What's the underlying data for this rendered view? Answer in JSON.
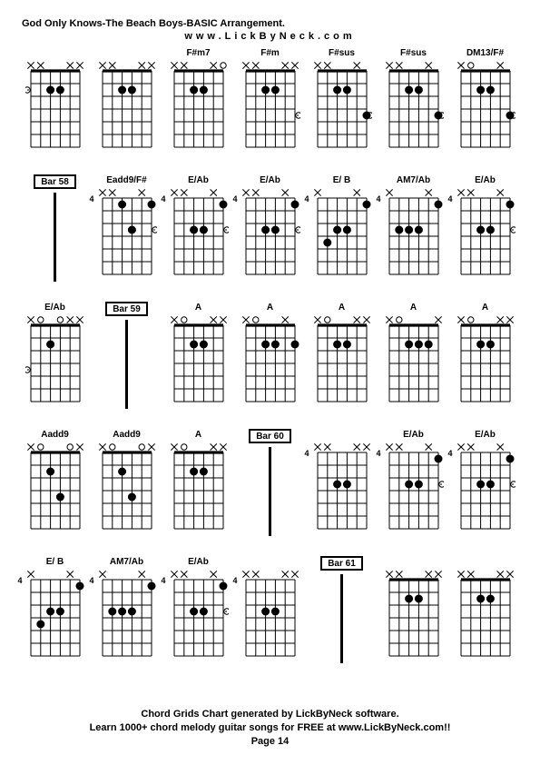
{
  "header": {
    "title": "God Only Knows-The Beach Boys-BASIC Arrangement.",
    "url": "www.LickByNeck.com"
  },
  "footer": {
    "line1": "Chord Grids Chart generated by LickByNeck software.",
    "line2": "Learn 1000+ chord melody guitar songs for FREE at www.LickByNeck.com!!",
    "page": "Page 14"
  },
  "style": {
    "bg": "#ffffff",
    "fg": "#000000",
    "grid_cols": 7,
    "grid_rows": 5,
    "diagram": {
      "strings": 6,
      "frets": 6,
      "width": 54,
      "height": 96,
      "x_size": 8,
      "dot_r": 4,
      "open_r": 3.2,
      "line_w": 1,
      "nut_w": 2
    }
  },
  "cells": [
    {
      "type": "chord",
      "label": "",
      "fretNum": null,
      "mutes": [
        0,
        1,
        4,
        5
      ],
      "opens": [],
      "nut": true,
      "dots": [
        {
          "s": 2,
          "f": 2
        },
        {
          "s": 3,
          "f": 2
        }
      ],
      "extraOpens": [
        {
          "side": "left",
          "f": 2
        }
      ]
    },
    {
      "type": "chord",
      "label": "",
      "fretNum": null,
      "mutes": [
        0,
        1,
        4,
        5
      ],
      "opens": [],
      "nut": true,
      "dots": [
        {
          "s": 2,
          "f": 2
        },
        {
          "s": 3,
          "f": 2
        }
      ]
    },
    {
      "type": "chord",
      "label": "F#m7",
      "fretNum": null,
      "mutes": [
        0,
        1,
        4
      ],
      "opens": [
        5
      ],
      "nut": true,
      "dots": [
        {
          "s": 2,
          "f": 2
        },
        {
          "s": 3,
          "f": 2
        }
      ]
    },
    {
      "type": "chord",
      "label": "F#m",
      "fretNum": null,
      "mutes": [
        0,
        1,
        4,
        5
      ],
      "opens": [],
      "nut": true,
      "dots": [
        {
          "s": 2,
          "f": 2
        },
        {
          "s": 3,
          "f": 2
        }
      ],
      "extraOpens": [
        {
          "side": "right",
          "f": 4
        }
      ]
    },
    {
      "type": "chord",
      "label": "F#sus",
      "fretNum": null,
      "mutes": [
        0,
        1,
        4
      ],
      "opens": [],
      "nut": true,
      "dots": [
        {
          "s": 2,
          "f": 2
        },
        {
          "s": 3,
          "f": 2
        },
        {
          "s": 5,
          "f": 4
        }
      ],
      "extraOpens": [
        {
          "side": "right",
          "f": 4
        }
      ]
    },
    {
      "type": "chord",
      "label": "F#sus",
      "fretNum": null,
      "mutes": [
        0,
        1,
        4
      ],
      "opens": [],
      "nut": true,
      "dots": [
        {
          "s": 2,
          "f": 2
        },
        {
          "s": 3,
          "f": 2
        },
        {
          "s": 5,
          "f": 4
        }
      ],
      "extraOpens": [
        {
          "side": "right",
          "f": 4
        }
      ]
    },
    {
      "type": "chord",
      "label": "DM13/F#",
      "fretNum": null,
      "mutes": [
        0,
        4
      ],
      "opens": [
        1
      ],
      "nut": true,
      "dots": [
        {
          "s": 2,
          "f": 2
        },
        {
          "s": 3,
          "f": 2
        },
        {
          "s": 5,
          "f": 4
        }
      ],
      "extraOpens": [
        {
          "side": "right",
          "f": 4
        }
      ]
    },
    {
      "type": "bar",
      "label": "Bar 58"
    },
    {
      "type": "chord",
      "label": "Eadd9/F#",
      "fretNum": "4",
      "mutes": [
        0,
        1,
        4
      ],
      "opens": [],
      "nut": false,
      "dots": [
        {
          "s": 2,
          "f": 1
        },
        {
          "s": 3,
          "f": 3
        },
        {
          "s": 5,
          "f": 1
        }
      ],
      "extraOpens": [
        {
          "side": "right",
          "f": 3
        }
      ]
    },
    {
      "type": "chord",
      "label": "E/Ab",
      "fretNum": "4",
      "mutes": [
        0,
        1,
        4
      ],
      "opens": [],
      "nut": false,
      "dots": [
        {
          "s": 2,
          "f": 3
        },
        {
          "s": 3,
          "f": 3
        },
        {
          "s": 5,
          "f": 1
        }
      ],
      "extraOpens": [
        {
          "side": "right",
          "f": 3
        }
      ]
    },
    {
      "type": "chord",
      "label": "E/Ab",
      "fretNum": "4",
      "mutes": [
        0,
        1,
        4
      ],
      "opens": [],
      "nut": false,
      "dots": [
        {
          "s": 2,
          "f": 3
        },
        {
          "s": 3,
          "f": 3
        },
        {
          "s": 5,
          "f": 1
        }
      ],
      "extraOpens": [
        {
          "side": "right",
          "f": 3
        }
      ]
    },
    {
      "type": "chord",
      "label": "E/ B",
      "fretNum": "4",
      "mutes": [
        0,
        4
      ],
      "opens": [],
      "nut": false,
      "dots": [
        {
          "s": 1,
          "f": 4
        },
        {
          "s": 2,
          "f": 3
        },
        {
          "s": 3,
          "f": 3
        },
        {
          "s": 5,
          "f": 1
        }
      ]
    },
    {
      "type": "chord",
      "label": "AM7/Ab",
      "fretNum": "4",
      "mutes": [
        0,
        4
      ],
      "opens": [],
      "nut": false,
      "dots": [
        {
          "s": 1,
          "f": 3
        },
        {
          "s": 2,
          "f": 3
        },
        {
          "s": 3,
          "f": 3
        },
        {
          "s": 5,
          "f": 1
        }
      ]
    },
    {
      "type": "chord",
      "label": "E/Ab",
      "fretNum": "4",
      "mutes": [
        0,
        1,
        4
      ],
      "opens": [],
      "nut": false,
      "dots": [
        {
          "s": 2,
          "f": 3
        },
        {
          "s": 3,
          "f": 3
        },
        {
          "s": 5,
          "f": 1
        }
      ],
      "extraOpens": [
        {
          "side": "right",
          "f": 3
        }
      ]
    },
    {
      "type": "chord",
      "label": "E/Ab",
      "fretNum": null,
      "mutes": [
        0,
        4,
        5
      ],
      "opens": [
        1,
        3
      ],
      "nut": true,
      "dots": [
        {
          "s": 2,
          "f": 2
        }
      ],
      "extraOpens": [
        {
          "side": "left",
          "f": 4
        }
      ]
    },
    {
      "type": "bar",
      "label": "Bar 59"
    },
    {
      "type": "chord",
      "label": "A",
      "fretNum": null,
      "mutes": [
        0,
        4,
        5
      ],
      "opens": [
        1
      ],
      "nut": true,
      "dots": [
        {
          "s": 2,
          "f": 2
        },
        {
          "s": 3,
          "f": 2
        }
      ]
    },
    {
      "type": "chord",
      "label": "A",
      "fretNum": null,
      "mutes": [
        0,
        4
      ],
      "opens": [
        1
      ],
      "nut": true,
      "dots": [
        {
          "s": 2,
          "f": 2
        },
        {
          "s": 3,
          "f": 2
        },
        {
          "s": 5,
          "f": 2
        }
      ]
    },
    {
      "type": "chord",
      "label": "A",
      "fretNum": null,
      "mutes": [
        0,
        4,
        5
      ],
      "opens": [
        1
      ],
      "nut": true,
      "dots": [
        {
          "s": 2,
          "f": 2
        },
        {
          "s": 3,
          "f": 2
        }
      ]
    },
    {
      "type": "chord",
      "label": "A",
      "fretNum": null,
      "mutes": [
        0,
        5
      ],
      "opens": [
        1
      ],
      "nut": true,
      "dots": [
        {
          "s": 2,
          "f": 2
        },
        {
          "s": 3,
          "f": 2
        },
        {
          "s": 4,
          "f": 2
        }
      ]
    },
    {
      "type": "chord",
      "label": "A",
      "fretNum": null,
      "mutes": [
        0,
        4,
        5
      ],
      "opens": [
        1
      ],
      "nut": true,
      "dots": [
        {
          "s": 2,
          "f": 2
        },
        {
          "s": 3,
          "f": 2
        }
      ]
    },
    {
      "type": "chord",
      "label": "Aadd9",
      "fretNum": null,
      "mutes": [
        0,
        5
      ],
      "opens": [
        1,
        4
      ],
      "nut": true,
      "dots": [
        {
          "s": 2,
          "f": 2
        },
        {
          "s": 3,
          "f": 4
        }
      ]
    },
    {
      "type": "chord",
      "label": "Aadd9",
      "fretNum": null,
      "mutes": [
        0,
        5
      ],
      "opens": [
        1,
        4
      ],
      "nut": true,
      "dots": [
        {
          "s": 2,
          "f": 2
        },
        {
          "s": 3,
          "f": 4
        }
      ]
    },
    {
      "type": "chord",
      "label": "A",
      "fretNum": null,
      "mutes": [
        0,
        4,
        5
      ],
      "opens": [
        1
      ],
      "nut": true,
      "dots": [
        {
          "s": 2,
          "f": 2
        },
        {
          "s": 3,
          "f": 2
        }
      ]
    },
    {
      "type": "bar",
      "label": "Bar 60"
    },
    {
      "type": "chord",
      "label": "",
      "fretNum": "4",
      "mutes": [
        0,
        1,
        4,
        5
      ],
      "opens": [],
      "nut": false,
      "dots": [
        {
          "s": 2,
          "f": 3
        },
        {
          "s": 3,
          "f": 3
        }
      ]
    },
    {
      "type": "chord",
      "label": "E/Ab",
      "fretNum": "4",
      "mutes": [
        0,
        1,
        4
      ],
      "opens": [],
      "nut": false,
      "dots": [
        {
          "s": 2,
          "f": 3
        },
        {
          "s": 3,
          "f": 3
        },
        {
          "s": 5,
          "f": 1
        }
      ],
      "extraOpens": [
        {
          "side": "right",
          "f": 3
        }
      ]
    },
    {
      "type": "chord",
      "label": "E/Ab",
      "fretNum": "4",
      "mutes": [
        0,
        1,
        4
      ],
      "opens": [],
      "nut": false,
      "dots": [
        {
          "s": 2,
          "f": 3
        },
        {
          "s": 3,
          "f": 3
        },
        {
          "s": 5,
          "f": 1
        }
      ],
      "extraOpens": [
        {
          "side": "right",
          "f": 3
        }
      ]
    },
    {
      "type": "chord",
      "label": "E/ B",
      "fretNum": "4",
      "mutes": [
        0,
        4
      ],
      "opens": [],
      "nut": false,
      "dots": [
        {
          "s": 1,
          "f": 4
        },
        {
          "s": 2,
          "f": 3
        },
        {
          "s": 3,
          "f": 3
        },
        {
          "s": 5,
          "f": 1
        }
      ]
    },
    {
      "type": "chord",
      "label": "AM7/Ab",
      "fretNum": "4",
      "mutes": [
        0,
        4
      ],
      "opens": [],
      "nut": false,
      "dots": [
        {
          "s": 1,
          "f": 3
        },
        {
          "s": 2,
          "f": 3
        },
        {
          "s": 3,
          "f": 3
        },
        {
          "s": 5,
          "f": 1
        }
      ]
    },
    {
      "type": "chord",
      "label": "E/Ab",
      "fretNum": "4",
      "mutes": [
        0,
        1,
        4
      ],
      "opens": [],
      "nut": false,
      "dots": [
        {
          "s": 2,
          "f": 3
        },
        {
          "s": 3,
          "f": 3
        },
        {
          "s": 5,
          "f": 1
        }
      ],
      "extraOpens": [
        {
          "side": "right",
          "f": 3
        }
      ]
    },
    {
      "type": "chord",
      "label": "",
      "fretNum": "4",
      "mutes": [
        0,
        1,
        4,
        5
      ],
      "opens": [],
      "nut": false,
      "dots": [
        {
          "s": 2,
          "f": 3
        },
        {
          "s": 3,
          "f": 3
        }
      ]
    },
    {
      "type": "bar",
      "label": "Bar 61"
    },
    {
      "type": "chord",
      "label": "",
      "fretNum": null,
      "mutes": [
        0,
        1,
        4,
        5
      ],
      "opens": [],
      "nut": true,
      "dots": [
        {
          "s": 2,
          "f": 2
        },
        {
          "s": 3,
          "f": 2
        }
      ]
    },
    {
      "type": "chord",
      "label": "",
      "fretNum": null,
      "mutes": [
        0,
        1,
        4,
        5
      ],
      "opens": [],
      "nut": true,
      "dots": [
        {
          "s": 2,
          "f": 2
        },
        {
          "s": 3,
          "f": 2
        }
      ]
    }
  ]
}
